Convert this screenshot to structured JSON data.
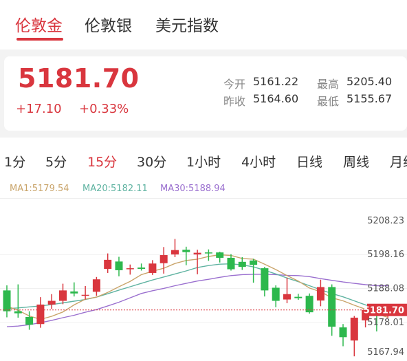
{
  "tabs": [
    {
      "label": "伦敦金",
      "active": true
    },
    {
      "label": "伦敦银",
      "active": false
    },
    {
      "label": "美元指数",
      "active": false
    }
  ],
  "quote": {
    "price": "5181.70",
    "change": "+17.10",
    "change_pct": "+0.33%",
    "open_label": "今开",
    "open": "5161.22",
    "high_label": "最高",
    "high": "5205.40",
    "prev_close_label": "昨收",
    "prev_close": "5164.60",
    "low_label": "最低",
    "low": "5155.67"
  },
  "periods": [
    {
      "label": "1分",
      "active": false
    },
    {
      "label": "5分",
      "active": false
    },
    {
      "label": "15分",
      "active": true
    },
    {
      "label": "30分",
      "active": false
    },
    {
      "label": "1小时",
      "active": false
    },
    {
      "label": "4小时",
      "active": false
    },
    {
      "label": "日线",
      "active": false
    },
    {
      "label": "周线",
      "active": false
    },
    {
      "label": "月线",
      "active": false
    }
  ],
  "ma_legend": {
    "ma1": "MA1:5179.54",
    "ma20": "MA20:5182.11",
    "ma30": "MA30:5188.94"
  },
  "colors": {
    "up": "#d9363e",
    "down": "#2db84d",
    "ma1": "#c9a46a",
    "ma20": "#5fb3a1",
    "ma30": "#9a6fcf"
  },
  "chart_data": {
    "type": "candlestick",
    "y_ticks": [
      "5208.23",
      "5198.16",
      "5188.08",
      "5178.01",
      "5167.94"
    ],
    "current_price_label": "5181.70",
    "current_price": 5181.7,
    "ylim": [
      5167.94,
      5208.23
    ],
    "candles": [
      {
        "o": 5187.5,
        "h": 5189.0,
        "l": 5179.5,
        "c": 5181.3
      },
      {
        "o": 5181.3,
        "h": 5189.3,
        "l": 5179.4,
        "c": 5180.7
      },
      {
        "o": 5179.6,
        "h": 5181.3,
        "l": 5175.8,
        "c": 5177.3
      },
      {
        "o": 5177.5,
        "h": 5185.5,
        "l": 5176.4,
        "c": 5183.3
      },
      {
        "o": 5183.3,
        "h": 5186.4,
        "l": 5182.0,
        "c": 5184.4
      },
      {
        "o": 5184.4,
        "h": 5189.5,
        "l": 5183.4,
        "c": 5187.5
      },
      {
        "o": 5187.2,
        "h": 5189.9,
        "l": 5185.7,
        "c": 5186.6
      },
      {
        "o": 5186.1,
        "h": 5188.8,
        "l": 5184.8,
        "c": 5186.2
      },
      {
        "o": 5187.1,
        "h": 5191.5,
        "l": 5185.9,
        "c": 5190.8
      },
      {
        "o": 5193.9,
        "h": 5198.5,
        "l": 5192.7,
        "c": 5196.6
      },
      {
        "o": 5196.1,
        "h": 5197.5,
        "l": 5191.7,
        "c": 5193.5
      },
      {
        "o": 5193.8,
        "h": 5195.2,
        "l": 5192.2,
        "c": 5194.1
      },
      {
        "o": 5194.3,
        "h": 5195.5,
        "l": 5193.4,
        "c": 5193.9
      },
      {
        "o": 5192.7,
        "h": 5196.5,
        "l": 5192.1,
        "c": 5195.5
      },
      {
        "o": 5195.6,
        "h": 5200.4,
        "l": 5192.5,
        "c": 5198.0
      },
      {
        "o": 5198.2,
        "h": 5202.8,
        "l": 5197.4,
        "c": 5199.5
      },
      {
        "o": 5199.6,
        "h": 5200.5,
        "l": 5195.0,
        "c": 5198.9
      },
      {
        "o": 5198.2,
        "h": 5199.6,
        "l": 5192.3,
        "c": 5198.7
      },
      {
        "o": 5198.8,
        "h": 5199.7,
        "l": 5196.3,
        "c": 5198.5
      },
      {
        "o": 5198.8,
        "h": 5199.0,
        "l": 5195.8,
        "c": 5197.2
      },
      {
        "o": 5197.2,
        "h": 5198.3,
        "l": 5193.4,
        "c": 5193.8
      },
      {
        "o": 5196.0,
        "h": 5197.4,
        "l": 5193.6,
        "c": 5194.5
      },
      {
        "o": 5196.4,
        "h": 5196.9,
        "l": 5189.8,
        "c": 5195.1
      },
      {
        "o": 5194.1,
        "h": 5194.5,
        "l": 5185.7,
        "c": 5187.5
      },
      {
        "o": 5188.3,
        "h": 5189.0,
        "l": 5182.5,
        "c": 5184.4
      },
      {
        "o": 5184.8,
        "h": 5191.3,
        "l": 5183.7,
        "c": 5186.4
      },
      {
        "o": 5185.6,
        "h": 5186.5,
        "l": 5184.7,
        "c": 5185.2
      },
      {
        "o": 5185.9,
        "h": 5186.6,
        "l": 5180.6,
        "c": 5181.0
      },
      {
        "o": 5184.5,
        "h": 5190.7,
        "l": 5182.8,
        "c": 5188.5
      },
      {
        "o": 5188.5,
        "h": 5189.3,
        "l": 5174.0,
        "c": 5176.7
      },
      {
        "o": 5176.5,
        "h": 5177.5,
        "l": 5170.9,
        "c": 5173.6
      },
      {
        "o": 5172.6,
        "h": 5179.9,
        "l": 5167.9,
        "c": 5179.4
      },
      {
        "o": 5178.6,
        "h": 5182.0,
        "l": 5176.5,
        "c": 5181.7
      },
      {
        "o": 5181.6,
        "h": 5181.8,
        "l": 5175.3,
        "c": 5181.5
      },
      {
        "o": 5181.3,
        "h": 5183.5,
        "l": 5179.4,
        "c": 5181.7
      }
    ],
    "ma1": [
      5182.8,
      5181.6,
      5179.9,
      5178.9,
      5179.8,
      5181.1,
      5183.2,
      5184.9,
      5185.5,
      5186.9,
      5188.6,
      5190.2,
      5192.2,
      5193.2,
      5194.1,
      5195.5,
      5196.4,
      5196.8,
      5197.6,
      5198.1,
      5197.9,
      5197.0,
      5196.8,
      5195.3,
      5193.7,
      5191.9,
      5190.3,
      5188.2,
      5187.1,
      5185.3,
      5184.4,
      5183.1,
      5181.9,
      5180.5,
      5179.5
    ],
    "ma20": [
      5182.1,
      5182.3,
      5182.6,
      5182.9,
      5183.3,
      5183.8,
      5184.3,
      5184.8,
      5185.5,
      5186.5,
      5187.6,
      5188.6,
      5189.6,
      5190.6,
      5191.5,
      5192.4,
      5193.3,
      5194.3,
      5194.9,
      5195.3,
      5195.4,
      5195.1,
      5194.5,
      5193.5,
      5192.4,
      5191.2,
      5190.1,
      5188.9,
      5187.7,
      5186.6,
      5185.6,
      5184.4,
      5183.2,
      5182.4,
      5182.1
    ],
    "ma30": [
      5176.7,
      5176.9,
      5177.3,
      5177.9,
      5178.6,
      5179.4,
      5180.1,
      5181.0,
      5181.8,
      5182.9,
      5184.0,
      5185.3,
      5186.6,
      5187.4,
      5188.1,
      5188.9,
      5189.6,
      5190.3,
      5190.8,
      5191.4,
      5191.9,
      5192.2,
      5192.3,
      5192.3,
      5192.2,
      5192.0,
      5191.9,
      5191.6,
      5191.0,
      5190.5,
      5190.0,
      5189.6,
      5189.2,
      5188.9,
      5188.9
    ]
  }
}
